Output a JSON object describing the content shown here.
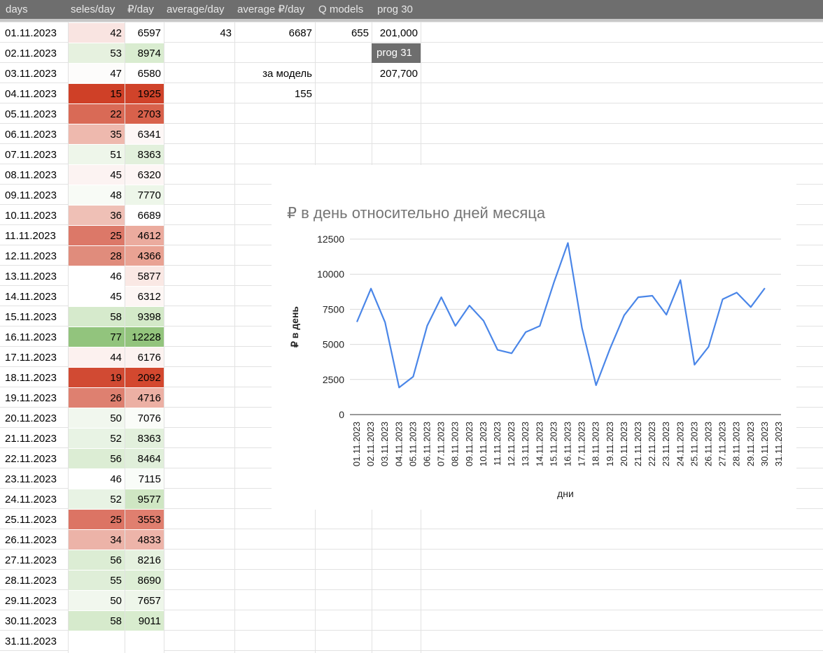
{
  "sheet": {
    "headers": [
      "days",
      "seles/day",
      "₽/day",
      "average/day",
      "average ₽/day",
      "Q models",
      "prog 30"
    ],
    "rows": [
      {
        "date": "01.11.2023",
        "sales": "42",
        "rub": "6597",
        "sales_bg": "#f9e4e1",
        "rub_bg": "#ffffff"
      },
      {
        "date": "02.11.2023",
        "sales": "53",
        "rub": "8974",
        "sales_bg": "#e6f1df",
        "rub_bg": "#d9ecd0"
      },
      {
        "date": "03.11.2023",
        "sales": "47",
        "rub": "6580",
        "sales_bg": "#fdfcfb",
        "rub_bg": "#ffffff"
      },
      {
        "date": "04.11.2023",
        "sales": "15",
        "rub": "1925",
        "sales_bg": "#cf4027",
        "rub_bg": "#d0432a"
      },
      {
        "date": "05.11.2023",
        "sales": "22",
        "rub": "2703",
        "sales_bg": "#d96a56",
        "rub_bg": "#d8614b"
      },
      {
        "date": "06.11.2023",
        "sales": "35",
        "rub": "6341",
        "sales_bg": "#eeb9ae",
        "rub_bg": "#fdf7f6"
      },
      {
        "date": "07.11.2023",
        "sales": "51",
        "rub": "8363",
        "sales_bg": "#eef6ea",
        "rub_bg": "#e2f0dc"
      },
      {
        "date": "08.11.2023",
        "sales": "45",
        "rub": "6320",
        "sales_bg": "#fcf3f2",
        "rub_bg": "#fdf6f5"
      },
      {
        "date": "09.11.2023",
        "sales": "48",
        "rub": "7770",
        "sales_bg": "#f8fbf6",
        "rub_bg": "#edf6e9"
      },
      {
        "date": "10.11.2023",
        "sales": "36",
        "rub": "6689",
        "sales_bg": "#efc0b6",
        "rub_bg": "#ffffff"
      },
      {
        "date": "11.11.2023",
        "sales": "25",
        "rub": "4612",
        "sales_bg": "#dc7868",
        "rub_bg": "#ebab9e"
      },
      {
        "date": "12.11.2023",
        "sales": "28",
        "rub": "4366",
        "sales_bg": "#e08c7c",
        "rub_bg": "#e9a293"
      },
      {
        "date": "13.11.2023",
        "sales": "46",
        "rub": "5877",
        "sales_bg": "#ffffff",
        "rub_bg": "#fae8e4"
      },
      {
        "date": "14.11.2023",
        "sales": "45",
        "rub": "6312",
        "sales_bg": "#ffffff",
        "rub_bg": "#fdf6f4"
      },
      {
        "date": "15.11.2023",
        "sales": "58",
        "rub": "9398",
        "sales_bg": "#d6eacc",
        "rub_bg": "#d3e9c8"
      },
      {
        "date": "16.11.2023",
        "sales": "77",
        "rub": "12228",
        "sales_bg": "#92c47d",
        "rub_bg": "#93c47d"
      },
      {
        "date": "17.11.2023",
        "sales": "44",
        "rub": "6176",
        "sales_bg": "#fcf1ef",
        "rub_bg": "#fcf2f0"
      },
      {
        "date": "18.11.2023",
        "sales": "19",
        "rub": "2092",
        "sales_bg": "#d14a33",
        "rub_bg": "#d3482f"
      },
      {
        "date": "19.11.2023",
        "sales": "26",
        "rub": "4716",
        "sales_bg": "#de8070",
        "rub_bg": "#ecb0a4"
      },
      {
        "date": "20.11.2023",
        "sales": "50",
        "rub": "7076",
        "sales_bg": "#f1f7ee",
        "rub_bg": "#fafcf8"
      },
      {
        "date": "21.11.2023",
        "sales": "52",
        "rub": "8363",
        "sales_bg": "#e8f3e4",
        "rub_bg": "#e2f0dc"
      },
      {
        "date": "22.11.2023",
        "sales": "56",
        "rub": "8464",
        "sales_bg": "#dcedd4",
        "rub_bg": "#e0efda"
      },
      {
        "date": "23.11.2023",
        "sales": "46",
        "rub": "7115",
        "sales_bg": "#ffffff",
        "rub_bg": "#f9fcf8"
      },
      {
        "date": "24.11.2023",
        "sales": "52",
        "rub": "9577",
        "sales_bg": "#e8f3e4",
        "rub_bg": "#cfe6c3"
      },
      {
        "date": "25.11.2023",
        "sales": "25",
        "rub": "3553",
        "sales_bg": "#dc7464",
        "rub_bg": "#e07f6f"
      },
      {
        "date": "26.11.2023",
        "sales": "34",
        "rub": "4833",
        "sales_bg": "#ecb3a8",
        "rub_bg": "#edb4a9"
      },
      {
        "date": "27.11.2023",
        "sales": "56",
        "rub": "8216",
        "sales_bg": "#dcedd4",
        "rub_bg": "#e5f1df"
      },
      {
        "date": "28.11.2023",
        "sales": "55",
        "rub": "8690",
        "sales_bg": "#dfeed8",
        "rub_bg": "#ddeed5"
      },
      {
        "date": "29.11.2023",
        "sales": "50",
        "rub": "7657",
        "sales_bg": "#f1f7ee",
        "rub_bg": "#eef6ea"
      },
      {
        "date": "30.11.2023",
        "sales": "58",
        "rub": "9011",
        "sales_bg": "#d6eacc",
        "rub_bg": "#d8ecce"
      },
      {
        "date": "31.11.2023",
        "sales": "",
        "rub": "",
        "sales_bg": "#ffffff",
        "rub_bg": "#ffffff"
      }
    ],
    "summary": {
      "avg_day": "43",
      "avg_rub_day": "6687",
      "q_models": "655",
      "prog30_value": "201,000",
      "prog31_label": "prog 31",
      "per_model_label": "за модель",
      "prog31_value": "207,700",
      "per_model_value": "155"
    }
  },
  "chart_data": {
    "type": "line",
    "title": "₽ в день относительно дней месяца",
    "xlabel": "дни",
    "ylabel": "₽ в день",
    "ylim": [
      0,
      12500
    ],
    "yticks": [
      0,
      2500,
      5000,
      7500,
      10000,
      12500
    ],
    "grid": true,
    "line_color": "#4a86e8",
    "categories": [
      "01.11.2023",
      "02.11.2023",
      "03.11.2023",
      "04.11.2023",
      "05.11.2023",
      "06.11.2023",
      "07.11.2023",
      "08.11.2023",
      "09.11.2023",
      "10.11.2023",
      "11.11.2023",
      "12.11.2023",
      "13.11.2023",
      "14.11.2023",
      "15.11.2023",
      "16.11.2023",
      "17.11.2023",
      "18.11.2023",
      "19.11.2023",
      "20.11.2023",
      "21.11.2023",
      "22.11.2023",
      "23.11.2023",
      "24.11.2023",
      "25.11.2023",
      "26.11.2023",
      "27.11.2023",
      "28.11.2023",
      "29.11.2023",
      "30.11.2023",
      "31.11.2023"
    ],
    "values": [
      6597,
      8974,
      6580,
      1925,
      2703,
      6341,
      8363,
      6320,
      7770,
      6689,
      4612,
      4366,
      5877,
      6312,
      9398,
      12228,
      6176,
      2092,
      4716,
      7076,
      8363,
      8464,
      7115,
      9577,
      3553,
      4833,
      8216,
      8690,
      7657,
      9011,
      null
    ]
  }
}
